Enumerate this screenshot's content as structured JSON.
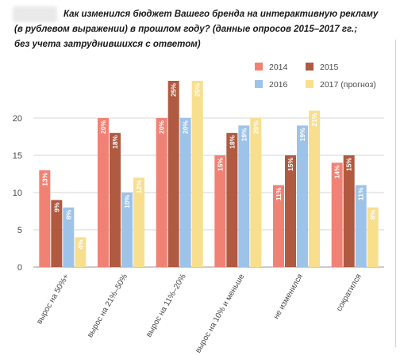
{
  "title_lines": [
    "Как изменился бюджет Вашего бренда на интерактивную рекламу",
    "(в рублевом выражении) в прошлом году? (данные опросов 2015–2017 гг.;",
    "без учета затруднившихся с ответом)"
  ],
  "colors": {
    "2014": "#f08275",
    "2015": "#b05a41",
    "2016": "#9ec3e8",
    "2017": "#f8df8e"
  },
  "chart_data": {
    "type": "bar",
    "categories": [
      "вырос на 50%+",
      "вырос на 21%–50%",
      "вырос на 11%–20%",
      "вырос на 10% и меньше",
      "не изменился",
      "сократился"
    ],
    "series": [
      {
        "name": "2014",
        "values": [
          13,
          20,
          20,
          15,
          11,
          14
        ],
        "labels": [
          "13%",
          "20%",
          "20%",
          "15%",
          "11%",
          "14%"
        ]
      },
      {
        "name": "2015",
        "values": [
          9,
          18,
          25,
          18,
          15,
          15
        ],
        "labels": [
          "9%",
          "18%",
          "25%",
          "18%",
          "15%",
          "15%"
        ]
      },
      {
        "name": "2016",
        "values": [
          8,
          10,
          20,
          19,
          19,
          11
        ],
        "labels": [
          "8%",
          "10%",
          "20%",
          "19%",
          "19%",
          "11%"
        ]
      },
      {
        "name": "2017 (прогноз)",
        "values": [
          4,
          12,
          25,
          20,
          21,
          8
        ],
        "labels": [
          "4%",
          "12%",
          "25%",
          "20%",
          "21%",
          "8%"
        ]
      }
    ],
    "yticks": [
      "0",
      "5",
      "10",
      "15",
      "20"
    ],
    "ylim": [
      0,
      25
    ],
    "grid": true,
    "legend_position": "top-right"
  }
}
